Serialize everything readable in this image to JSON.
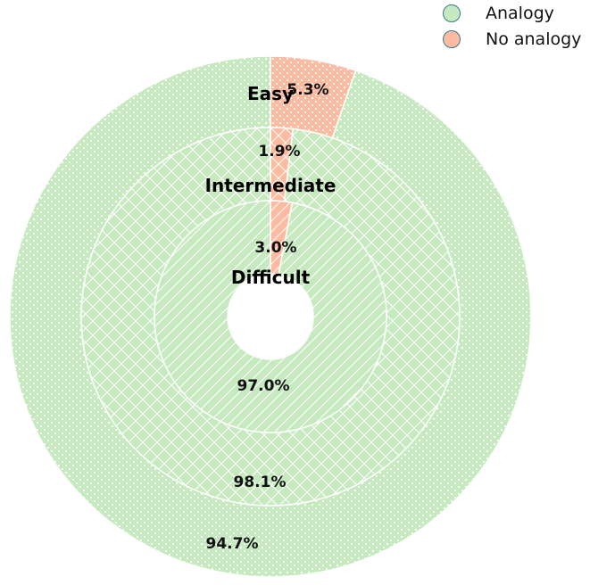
{
  "chart_data": {
    "type": "pie",
    "variant": "nested-donut",
    "categories": [
      "Analogy",
      "No analogy"
    ],
    "colors": {
      "Analogy": "#c7e9c0",
      "No analogy": "#fcbba1"
    },
    "rings": [
      {
        "name": "Easy",
        "values": [
          94.7,
          5.3
        ],
        "labels": [
          "94.7%",
          "5.3%"
        ],
        "pattern": "dots"
      },
      {
        "name": "Intermediate",
        "values": [
          98.1,
          1.9
        ],
        "labels": [
          "98.1%",
          "1.9%"
        ],
        "pattern": "crosshatch"
      },
      {
        "name": "Difficult",
        "values": [
          97.0,
          3.0
        ],
        "labels": [
          "97.0%",
          "3.0%"
        ],
        "pattern": "diagonal"
      }
    ],
    "legend": {
      "position": "top-right",
      "entries": [
        "Analogy",
        "No analogy"
      ]
    }
  }
}
